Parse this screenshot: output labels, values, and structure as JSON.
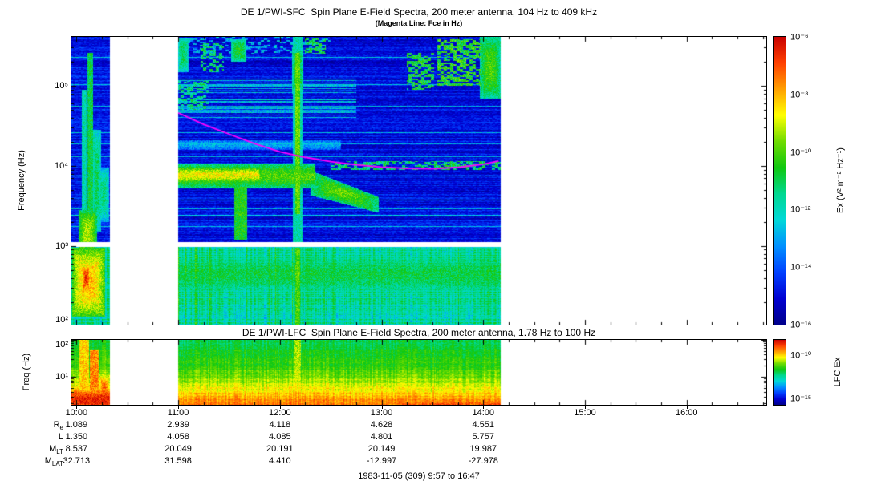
{
  "titles": {
    "sfc": "DE 1/PWI-SFC  Spin Plane E-Field Spectra, 200 meter antenna, 104 Hz to 409 kHz",
    "sfc_sub": "(Magenta Line: Fce in Hz)",
    "lfc": "DE 1/PWI-LFC  Spin Plane E-Field Spectra, 200 meter antenna, 1.78 Hz to 100 Hz",
    "footer": "1983-11-05 (309) 9:57 to 16:47"
  },
  "axes": {
    "sfc_ylabel": "Frequency (Hz)",
    "lfc_ylabel": "Freq (Hz)",
    "time_ticks": [
      {
        "hour": 10,
        "label": "10:00"
      },
      {
        "hour": 11,
        "label": "11:00"
      },
      {
        "hour": 12,
        "label": "12:00"
      },
      {
        "hour": 13,
        "label": "13:00"
      },
      {
        "hour": 14,
        "label": "14:00"
      },
      {
        "hour": 15,
        "label": "15:00"
      },
      {
        "hour": 16,
        "label": "16:00"
      }
    ],
    "sfc_yticks": [
      {
        "exp": 5,
        "label": "10⁵"
      },
      {
        "exp": 4,
        "label": "10⁴"
      },
      {
        "exp": 3,
        "label": "10³"
      },
      {
        "exp": 2,
        "label": "10²"
      }
    ],
    "lfc_yticks": [
      {
        "exp": 2,
        "label": "10²"
      },
      {
        "exp": 1,
        "label": "10¹"
      }
    ]
  },
  "colorbars": {
    "sfc": {
      "label": "Ex (V² m⁻² Hz⁻¹)",
      "range_exponents": [
        -6,
        -16
      ],
      "ticks": [
        {
          "exp": -6,
          "label": "10⁻⁶"
        },
        {
          "exp": -8,
          "label": "10⁻⁸"
        },
        {
          "exp": -10,
          "label": "10⁻¹⁰"
        },
        {
          "exp": -12,
          "label": "10⁻¹²"
        },
        {
          "exp": -14,
          "label": "10⁻¹⁴"
        },
        {
          "exp": -16,
          "label": "10⁻¹⁶"
        }
      ]
    },
    "lfc": {
      "label": "LFC Ex",
      "range_exponents": [
        -8.3,
        -15.7
      ],
      "ticks": [
        {
          "exp": -10,
          "label": "10⁻¹⁰"
        },
        {
          "exp": -15,
          "label": "10⁻¹⁵"
        }
      ]
    }
  },
  "ephemeris": {
    "rows": [
      {
        "label": "R",
        "sub": "e",
        "values": [
          "1.089",
          "2.939",
          "4.118",
          "4.628",
          "4.551"
        ]
      },
      {
        "label": "L",
        "sub": "",
        "values": [
          "1.350",
          "4.058",
          "4.085",
          "4.801",
          "5.757"
        ]
      },
      {
        "label": "M",
        "sub": "LT",
        "values": [
          "8.537",
          "20.049",
          "20.191",
          "20.149",
          "19.987"
        ]
      },
      {
        "label": "M",
        "sub": "LAT",
        "values": [
          "32.713",
          "31.598",
          "4.410",
          "-12.997",
          "-27.978"
        ]
      }
    ]
  },
  "chart_data": [
    {
      "type": "heatmap",
      "name": "sfc_spectrogram",
      "title": "DE 1/PWI-SFC Spin Plane E-Field Spectra, 200 meter antenna, 104 Hz to 409 kHz",
      "ylabel": "Frequency (Hz)",
      "y_scale": "log",
      "y_range_hz": [
        104,
        409000
      ],
      "x_range_hours": [
        9.95,
        16.7833
      ],
      "x_tick_labels": [
        "10:00",
        "11:00",
        "12:00",
        "13:00",
        "14:00",
        "15:00",
        "16:00"
      ],
      "colorbar_label": "Ex (V² m⁻² Hz⁻¹)",
      "colorbar_exponent_range": [
        -6,
        -16
      ],
      "data_time_segments_hours": [
        [
          9.95,
          10.33
        ],
        [
          11.0,
          14.17
        ]
      ],
      "receiver_band_gap_hz": [
        970,
        1110
      ],
      "background_level": 0.11,
      "low_band": {
        "f_range_hz": [
          104,
          970
        ],
        "level": 0.42
      },
      "colormap": [
        "#00008b",
        "#0000d2",
        "#0040ff",
        "#0090ff",
        "#00d8d8",
        "#00d890",
        "#10c810",
        "#70dc00",
        "#ffff00",
        "#ffa000",
        "#ff4000",
        "#c80000"
      ],
      "fce_line": {
        "label": "Fce (electron cyclotron frequency)",
        "color": "#ff00ff",
        "hours": [
          11.0,
          11.25,
          11.5,
          11.75,
          12.0,
          12.25,
          12.5,
          12.75,
          13.0,
          13.25,
          13.5,
          13.75,
          14.0,
          14.15
        ],
        "freq_hz": [
          46000,
          33000,
          25000,
          19000,
          15000,
          12800,
          11300,
          10300,
          9700,
          9300,
          9200,
          9600,
          10500,
          11500
        ]
      },
      "features": [
        {
          "shape": "blob",
          "t": [
            9.96,
            10.28
          ],
          "f": [
            130,
            950
          ],
          "v": 0.8
        },
        {
          "shape": "blob",
          "t": [
            10.05,
            10.14
          ],
          "f": [
            260,
            600
          ],
          "v": 0.93
        },
        {
          "shape": "blob",
          "t": [
            10.02,
            10.2
          ],
          "f": [
            800,
            2800
          ],
          "v": 0.68
        },
        {
          "shape": "vstreak",
          "t": [
            10.05,
            10.1
          ],
          "f": [
            1000,
            90000
          ],
          "v": 0.42
        },
        {
          "shape": "vstreak",
          "t": [
            10.11,
            10.16
          ],
          "f": [
            1200,
            260000
          ],
          "v": 0.52
        },
        {
          "shape": "blob",
          "t": [
            10.16,
            10.24
          ],
          "f": [
            1500,
            28000
          ],
          "v": 0.5
        },
        {
          "shape": "blob",
          "t": [
            10.21,
            10.32
          ],
          "f": [
            2000,
            9500
          ],
          "v": 0.46
        },
        {
          "shape": "band",
          "t": [
            11.0,
            12.35
          ],
          "f": [
            5200,
            10800
          ],
          "v": 0.6
        },
        {
          "shape": "band",
          "t": [
            11.0,
            11.8
          ],
          "f": [
            6200,
            9600
          ],
          "v": 0.73
        },
        {
          "shape": "slope",
          "t": [
            12.3,
            12.97
          ],
          "f": [
            4300,
            8800
          ],
          "f_end": [
            2600,
            4100
          ],
          "v": 0.62
        },
        {
          "shape": "vstreak",
          "t": [
            12.13,
            12.22
          ],
          "f": [
            104,
            409000
          ],
          "v": 0.42
        },
        {
          "shape": "vstreak",
          "t": [
            12.15,
            12.2
          ],
          "f": [
            2500,
            260000
          ],
          "v": 0.62
        },
        {
          "shape": "blob",
          "t": [
            12.12,
            12.23
          ],
          "f": [
            80000,
            300000
          ],
          "v": 0.55
        },
        {
          "shape": "vstreak",
          "t": [
            12.15,
            12.2
          ],
          "f": [
            104,
            950
          ],
          "v": 0.6
        },
        {
          "shape": "speckle",
          "t": [
            13.25,
            13.52
          ],
          "f": [
            90000,
            260000
          ],
          "v": 0.52,
          "density": 0.55
        },
        {
          "shape": "speckle",
          "t": [
            13.55,
            13.98
          ],
          "f": [
            100000,
            380000
          ],
          "v": 0.55,
          "density": 0.6
        },
        {
          "shape": "blob",
          "t": [
            13.97,
            14.17
          ],
          "f": [
            70000,
            409000
          ],
          "v": 0.6
        },
        {
          "shape": "speckle",
          "t": [
            11.22,
            11.45
          ],
          "f": [
            150000,
            340000
          ],
          "v": 0.48,
          "density": 0.5
        },
        {
          "shape": "blob",
          "t": [
            11.0,
            11.1
          ],
          "f": [
            150000,
            400000
          ],
          "v": 0.5
        },
        {
          "shape": "blob",
          "t": [
            11.52,
            11.67
          ],
          "f": [
            200000,
            380000
          ],
          "v": 0.55
        },
        {
          "shape": "speckle",
          "t": [
            12.25,
            12.45
          ],
          "f": [
            250000,
            400000
          ],
          "v": 0.5,
          "density": 0.45
        },
        {
          "shape": "hstripes",
          "t": [
            11.0,
            12.75
          ],
          "f": [
            40000,
            130000
          ],
          "v": 0.34
        },
        {
          "shape": "speckle",
          "t": [
            11.0,
            11.3
          ],
          "f": [
            50000,
            115000
          ],
          "v": 0.45,
          "density": 0.5
        },
        {
          "shape": "band",
          "t": [
            11.0,
            12.6
          ],
          "f": [
            16000,
            21000
          ],
          "v": 0.3
        },
        {
          "shape": "speckle",
          "t": [
            12.5,
            14.17
          ],
          "f": [
            9000,
            11500
          ],
          "v": 0.48,
          "density": 0.55
        },
        {
          "shape": "speckle",
          "t": [
            11.0,
            12.5
          ],
          "f": [
            250000,
            409000
          ],
          "v": 0.32,
          "density": 0.25
        },
        {
          "shape": "band",
          "t": [
            11.0,
            14.17
          ],
          "f": [
            250,
            750
          ],
          "v": 0.5
        },
        {
          "shape": "vstreak",
          "t": [
            11.55,
            11.68
          ],
          "f": [
            1200,
            5500
          ],
          "v": 0.55
        }
      ]
    },
    {
      "type": "heatmap",
      "name": "lfc_spectrogram",
      "title": "DE 1/PWI-LFC Spin Plane E-Field Spectra, 200 meter antenna, 1.78 Hz to 100 Hz",
      "ylabel": "Freq (Hz)",
      "y_scale": "log",
      "y_range_hz": [
        1.78,
        100
      ],
      "x_range_hours": [
        9.95,
        16.7833
      ],
      "colorbar_label": "LFC Ex",
      "colorbar_exponent_range": [
        -8.3,
        -15.7
      ],
      "data_time_segments_hours": [
        [
          9.95,
          10.33
        ],
        [
          11.0,
          14.17
        ]
      ],
      "gradient_profile": [
        {
          "f_hz": 100,
          "v": 0.5
        },
        {
          "f_hz": 30,
          "v": 0.56
        },
        {
          "f_hz": 10,
          "v": 0.63
        },
        {
          "f_hz": 5,
          "v": 0.72
        },
        {
          "f_hz": 3,
          "v": 0.8
        },
        {
          "f_hz": 1.78,
          "v": 0.87
        }
      ],
      "features": [
        {
          "shape": "band",
          "t": [
            9.95,
            10.33
          ],
          "f": [
            1.0,
            5.5
          ],
          "v": 0.95
        },
        {
          "shape": "vstreak",
          "t": [
            10.03,
            10.12
          ],
          "f": [
            1.78,
            100
          ],
          "v": 0.78
        },
        {
          "shape": "vstreak",
          "t": [
            10.13,
            10.22
          ],
          "f": [
            1.78,
            55
          ],
          "v": 0.85
        },
        {
          "shape": "blob",
          "t": [
            10.22,
            10.33
          ],
          "f": [
            1.78,
            12
          ],
          "v": 0.88
        },
        {
          "shape": "vstreak",
          "t": [
            12.14,
            12.21
          ],
          "f": [
            1.78,
            100
          ],
          "v": 0.68
        },
        {
          "shape": "band",
          "t": [
            13.4,
            14.17
          ],
          "f": [
            1.0,
            2.7
          ],
          "v": 0.9
        },
        {
          "shape": "band",
          "t": [
            11.0,
            14.17
          ],
          "f": [
            1.0,
            2.4
          ],
          "v": 0.84
        }
      ]
    }
  ]
}
